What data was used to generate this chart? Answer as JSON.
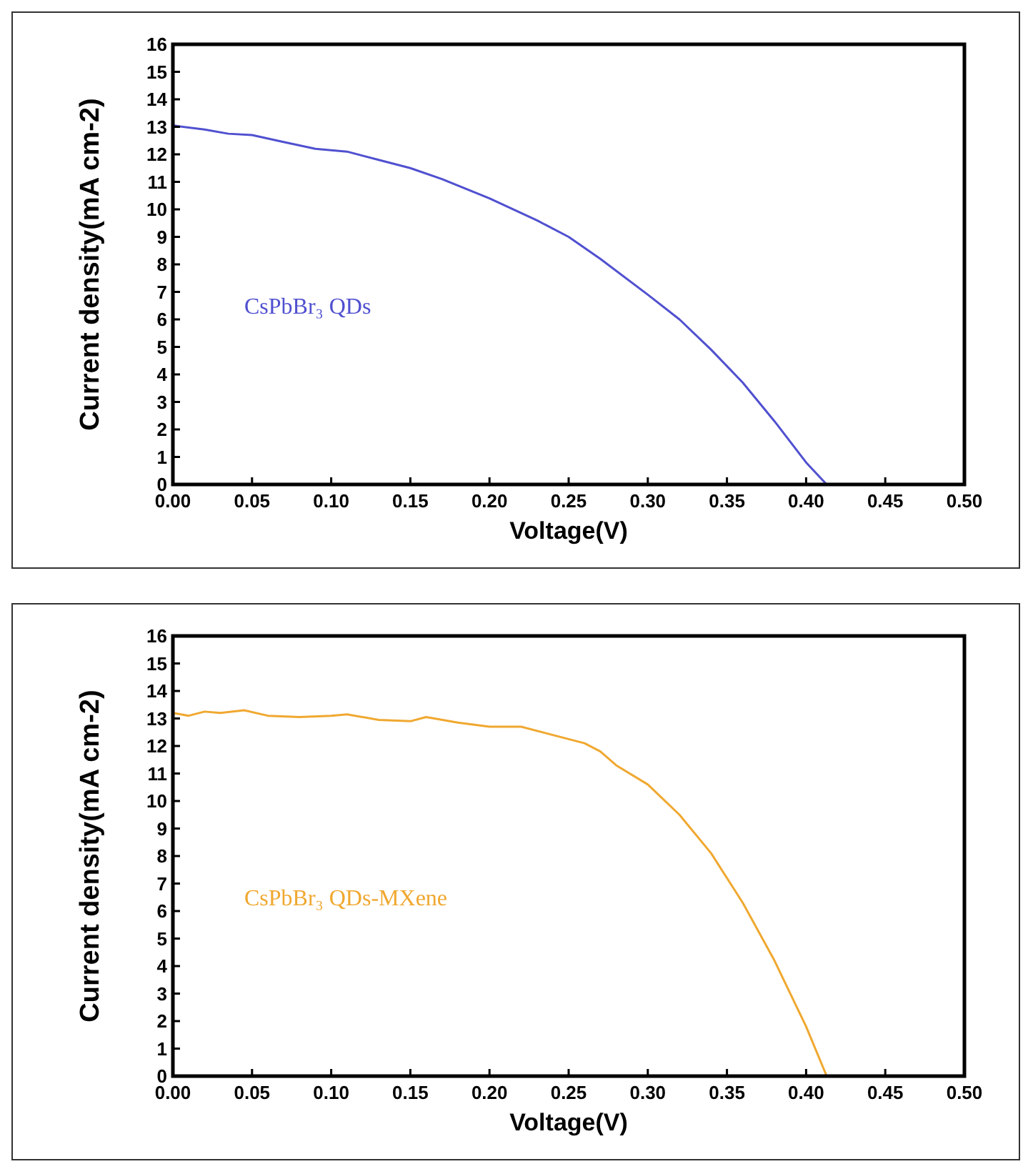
{
  "chart_data": [
    {
      "type": "line",
      "xlabel": "Voltage(V)",
      "ylabel": "Current density(mA cm-2)",
      "xlim": [
        0,
        0.5
      ],
      "ylim": [
        0,
        16
      ],
      "xticks": [
        {
          "value": 0,
          "label": "0.00"
        },
        {
          "value": 0.05,
          "label": "0.05"
        },
        {
          "value": 0.1,
          "label": "0.10"
        },
        {
          "value": 0.15,
          "label": "0.15"
        },
        {
          "value": 0.2,
          "label": "0.20"
        },
        {
          "value": 0.25,
          "label": "0.25"
        },
        {
          "value": 0.3,
          "label": "0.30"
        },
        {
          "value": 0.35,
          "label": "0.35"
        },
        {
          "value": 0.4,
          "label": "0.40"
        },
        {
          "value": 0.45,
          "label": "0.45"
        },
        {
          "value": 0.5,
          "label": "0.50"
        }
      ],
      "yticks": [
        0,
        1,
        2,
        3,
        4,
        5,
        6,
        7,
        8,
        9,
        10,
        11,
        12,
        13,
        14,
        15,
        16
      ],
      "grid": false,
      "series": [
        {
          "name": "CsPbBr₃ QDs",
          "color": "#5050d0",
          "x": [
            0,
            0.02,
            0.035,
            0.05,
            0.07,
            0.09,
            0.11,
            0.13,
            0.15,
            0.17,
            0.2,
            0.23,
            0.25,
            0.27,
            0.3,
            0.32,
            0.34,
            0.36,
            0.38,
            0.4,
            0.413
          ],
          "values": [
            13.05,
            12.9,
            12.75,
            12.7,
            12.45,
            12.2,
            12.1,
            11.8,
            11.5,
            11.1,
            10.4,
            9.6,
            9.0,
            8.2,
            6.9,
            6.0,
            4.9,
            3.7,
            2.3,
            0.8,
            0
          ]
        }
      ]
    },
    {
      "type": "line",
      "xlabel": "Voltage(V)",
      "ylabel": "Current density(mA cm-2)",
      "xlim": [
        0,
        0.5
      ],
      "ylim": [
        0,
        16
      ],
      "xticks": [
        {
          "value": 0,
          "label": "0.00"
        },
        {
          "value": 0.05,
          "label": "0.05"
        },
        {
          "value": 0.1,
          "label": "0.10"
        },
        {
          "value": 0.15,
          "label": "0.15"
        },
        {
          "value": 0.2,
          "label": "0.20"
        },
        {
          "value": 0.25,
          "label": "0.25"
        },
        {
          "value": 0.3,
          "label": "0.30"
        },
        {
          "value": 0.35,
          "label": "0.35"
        },
        {
          "value": 0.4,
          "label": "0.40"
        },
        {
          "value": 0.45,
          "label": "0.45"
        },
        {
          "value": 0.5,
          "label": "0.50"
        }
      ],
      "yticks": [
        0,
        1,
        2,
        3,
        4,
        5,
        6,
        7,
        8,
        9,
        10,
        11,
        12,
        13,
        14,
        15,
        16
      ],
      "grid": false,
      "series": [
        {
          "name": "CsPbBr₃ QDs-MXene",
          "color": "#f0a830",
          "x": [
            0,
            0.01,
            0.02,
            0.03,
            0.045,
            0.06,
            0.08,
            0.1,
            0.11,
            0.13,
            0.15,
            0.16,
            0.18,
            0.2,
            0.22,
            0.24,
            0.26,
            0.27,
            0.28,
            0.3,
            0.32,
            0.34,
            0.36,
            0.38,
            0.4,
            0.413
          ],
          "values": [
            13.2,
            13.1,
            13.25,
            13.2,
            13.3,
            13.1,
            13.05,
            13.1,
            13.15,
            12.95,
            12.9,
            13.05,
            12.85,
            12.7,
            12.7,
            12.4,
            12.1,
            11.8,
            11.3,
            10.6,
            9.5,
            8.1,
            6.3,
            4.2,
            1.8,
            0
          ]
        }
      ]
    }
  ]
}
